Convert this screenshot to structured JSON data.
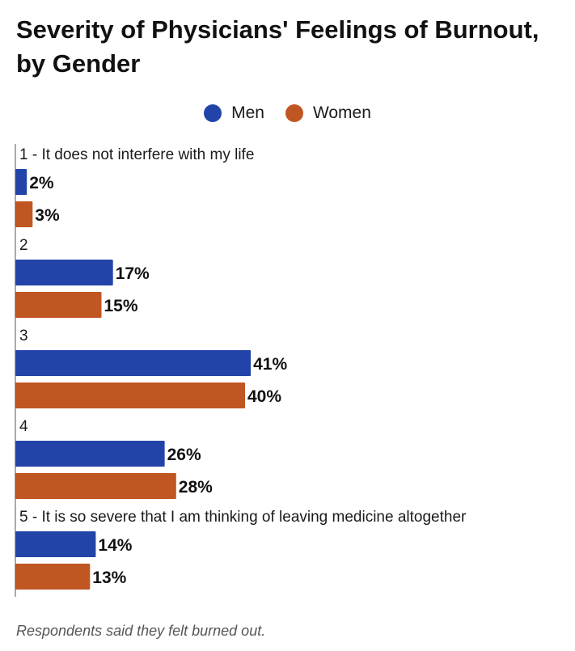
{
  "title": "Severity of Physicians' Feelings of Burnout, by Gender",
  "legend": [
    {
      "label": "Men",
      "color": "#2244a8"
    },
    {
      "label": "Women",
      "color": "#c05621"
    }
  ],
  "chart_data": {
    "type": "bar",
    "orientation": "horizontal",
    "title": "Severity of Physicians' Feelings of Burnout, by Gender",
    "categories": [
      "1 - It does not interfere with my life",
      "2",
      "3",
      "4",
      "5 - It is so severe that I am thinking of leaving medicine altogether"
    ],
    "series": [
      {
        "name": "Men",
        "color": "#2244a8",
        "values": [
          2,
          17,
          41,
          26,
          14
        ],
        "labels": [
          "2%",
          "17%",
          "41%",
          "26%",
          "14%"
        ]
      },
      {
        "name": "Women",
        "color": "#c05621",
        "values": [
          3,
          15,
          40,
          28,
          13
        ],
        "labels": [
          "3%",
          "15%",
          "40%",
          "28%",
          "13%"
        ]
      }
    ],
    "value_suffix": "%",
    "grid": false,
    "legend_position": "top-center"
  },
  "footnote": "Respondents said they felt burned out."
}
